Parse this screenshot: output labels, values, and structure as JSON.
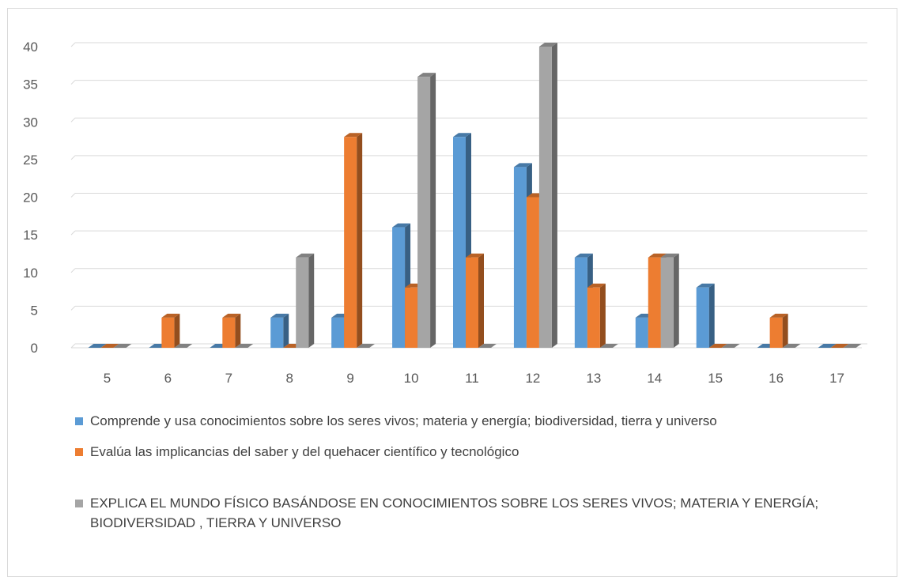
{
  "chart_data": {
    "type": "bar",
    "categories": [
      "5",
      "6",
      "7",
      "8",
      "9",
      "10",
      "11",
      "12",
      "13",
      "14",
      "15",
      "16",
      "17"
    ],
    "series": [
      {
        "name": "Comprende y usa conocimientos sobre los seres vivos; materia y energía; biodiversidad, tierra y universo",
        "color": "#5b9bd5",
        "values": [
          0,
          0,
          0,
          4,
          4,
          16,
          28,
          24,
          12,
          4,
          8,
          0,
          0
        ]
      },
      {
        "name": "Evalúa las implicancias del saber y del quehacer científico y tecnológico",
        "color": "#ed7d31",
        "values": [
          0,
          4,
          4,
          0,
          28,
          8,
          12,
          20,
          8,
          12,
          0,
          4,
          0
        ]
      },
      {
        "name": "EXPLICA EL MUNDO FÍSICO BASÁNDOSE EN CONOCIMIENTOS SOBRE LOS SERES VIVOS; MATERIA Y ENERGÍA; BIODIVERSIDAD , TIERRA Y UNIVERSO",
        "color": "#a5a5a5",
        "values": [
          0,
          0,
          0,
          12,
          0,
          36,
          0,
          40,
          0,
          12,
          0,
          0,
          0
        ]
      }
    ],
    "yticks": [
      "0",
      "5",
      "10",
      "15",
      "20",
      "25",
      "30",
      "35",
      "40"
    ],
    "ylim": [
      0,
      40
    ],
    "grid": true,
    "legend_position": "bottom",
    "title": "",
    "xlabel": "",
    "ylabel": ""
  }
}
